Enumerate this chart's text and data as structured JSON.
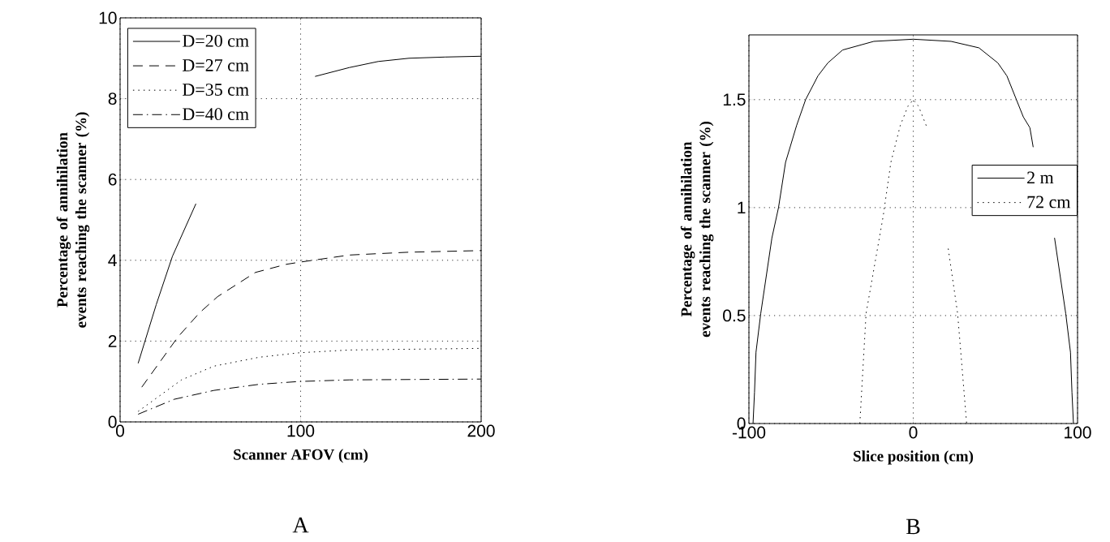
{
  "chart_data": [
    {
      "type": "line",
      "xlabel": "Scanner AFOV (cm)",
      "ylabel": "Percentage of annihilation events reaching the scanner (%)",
      "xlim": [
        0,
        200
      ],
      "ylim": [
        0,
        10
      ],
      "xticks": [
        0,
        100,
        200
      ],
      "yticks": [
        0,
        2,
        4,
        6,
        8,
        10
      ],
      "grid": true,
      "legend": "top left",
      "annotations": [
        "A"
      ],
      "series": [
        {
          "name": "D=20 cm",
          "color": "#000000",
          "line_style": "solid",
          "x": [
            10,
            20,
            29,
            42,
            70,
            108,
            127,
            143,
            160,
            180,
            200
          ],
          "values": [
            1.45,
            2.9,
            4.1,
            5.4,
            null,
            8.55,
            8.77,
            8.92,
            9.0,
            9.03,
            9.05
          ]
        },
        {
          "name": "D=27 cm",
          "color": "#000000",
          "line_style": "dashed",
          "x": [
            12,
            32,
            44,
            54,
            75,
            92,
            99,
            127,
            160,
            200
          ],
          "values": [
            0.86,
            2.1,
            2.7,
            3.1,
            3.7,
            3.9,
            3.95,
            4.13,
            4.2,
            4.24
          ]
        },
        {
          "name": "D=35 cm",
          "color": "#000000",
          "line_style": "dotted",
          "x": [
            10,
            34,
            52,
            77,
            99,
            127,
            200
          ],
          "values": [
            0.26,
            1.04,
            1.38,
            1.6,
            1.71,
            1.78,
            1.82
          ]
        },
        {
          "name": "D=40 cm",
          "color": "#000000",
          "line_style": "dashdot",
          "x": [
            10,
            30,
            52,
            77,
            99,
            127,
            200
          ],
          "values": [
            0.19,
            0.56,
            0.78,
            0.93,
            1.0,
            1.04,
            1.06
          ]
        }
      ]
    },
    {
      "type": "line",
      "xlabel": "Slice position (cm)",
      "ylabel": "Percentage of annihilation events reaching the scanner (%)",
      "xlim": [
        -100,
        100
      ],
      "ylim": [
        0,
        1.8
      ],
      "xticks": [
        -100,
        0,
        100
      ],
      "yticks": [
        0,
        0.5,
        1,
        1.5
      ],
      "grid": true,
      "legend": "right",
      "annotations": [
        "B"
      ],
      "series": [
        {
          "name": "2 m",
          "color": "#000000",
          "line_style": "solid",
          "x": [
            -97.5,
            -96.6,
            -95.7,
            -92.8,
            -86,
            -82,
            -77.7,
            -71,
            -65.5,
            -58,
            -52,
            -43,
            -24,
            0,
            23,
            40,
            51.5,
            57,
            67,
            71,
            73,
            80,
            86,
            92.8,
            95.7,
            96.6,
            97.5
          ],
          "values": [
            0,
            0.145,
            0.33,
            0.51,
            0.86,
            1.0,
            1.21,
            1.38,
            1.5,
            1.61,
            1.67,
            1.73,
            1.77,
            1.78,
            1.77,
            1.74,
            1.67,
            1.61,
            1.42,
            1.37,
            1.28,
            null,
            0.86,
            0.51,
            0.33,
            0.145,
            0
          ]
        },
        {
          "name": "72 cm",
          "color": "#000000",
          "line_style": "dotted",
          "x": [
            -32.5,
            -28.7,
            -18.3,
            -13.6,
            -7.9,
            -3.2,
            0,
            3.2,
            7.9,
            14,
            21.3,
            27,
            32.5
          ],
          "values": [
            0,
            0.51,
            0.96,
            1.21,
            1.38,
            1.47,
            1.5,
            1.47,
            1.38,
            null,
            0.81,
            0.51,
            0
          ]
        }
      ]
    }
  ]
}
